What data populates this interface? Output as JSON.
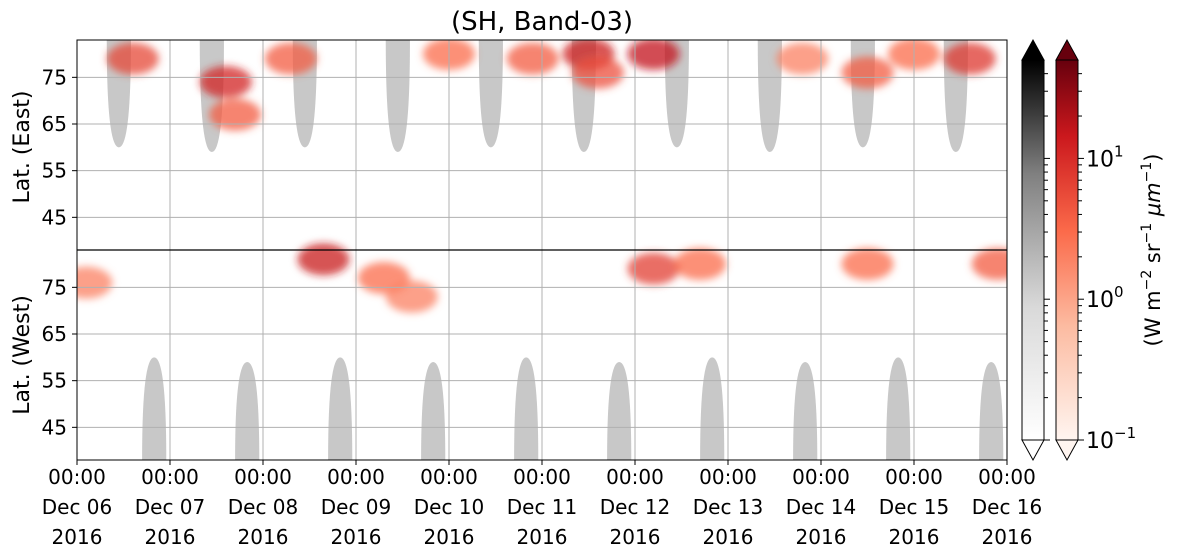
{
  "chart_data": {
    "type": "heatmap",
    "title": "(SH, Band-03)",
    "ylabel_top": "Lat. (East)",
    "ylabel_bottom": "Lat. (West)",
    "y_ticks_east": [
      "45",
      "55",
      "65",
      "75"
    ],
    "y_ticks_west": [
      "75",
      "65",
      "55",
      "45"
    ],
    "y_tick_values_east": [
      45,
      55,
      65,
      75
    ],
    "y_tick_values_west": [
      75,
      65,
      55,
      45
    ],
    "x_ticks": [
      {
        "time": "00:00",
        "date": "Dec 06",
        "year": "2016"
      },
      {
        "time": "00:00",
        "date": "Dec 07",
        "year": "2016"
      },
      {
        "time": "00:00",
        "date": "Dec 08",
        "year": "2016"
      },
      {
        "time": "00:00",
        "date": "Dec 09",
        "year": "2016"
      },
      {
        "time": "00:00",
        "date": "Dec 10",
        "year": "2016"
      },
      {
        "time": "00:00",
        "date": "Dec 11",
        "year": "2016"
      },
      {
        "time": "00:00",
        "date": "Dec 12",
        "year": "2016"
      },
      {
        "time": "00:00",
        "date": "Dec 13",
        "year": "2016"
      },
      {
        "time": "00:00",
        "date": "Dec 14",
        "year": "2016"
      },
      {
        "time": "00:00",
        "date": "Dec 15",
        "year": "2016"
      },
      {
        "time": "00:00",
        "date": "Dec 16",
        "year": "2016"
      }
    ],
    "x_range_days": [
      0,
      10
    ],
    "lat_range": [
      38,
      83
    ],
    "grid": true,
    "colorbars": [
      {
        "name": "gray",
        "scale": "log",
        "range": [
          0.1,
          50
        ],
        "extend": "both",
        "colors": [
          "#ffffff",
          "#000000"
        ]
      },
      {
        "name": "reds",
        "scale": "log",
        "range": [
          0.1,
          50
        ],
        "extend": "both",
        "colors": [
          "#fff5f0",
          "#67000d"
        ]
      }
    ],
    "colorbar_ticks": [
      {
        "base": "10",
        "exp": "1",
        "value": 10
      },
      {
        "base": "10",
        "exp": "0",
        "value": 1
      },
      {
        "base": "10",
        "exp": "−1",
        "value": 0.1
      }
    ],
    "colorbar_label": {
      "prefix": "(W m",
      "exp1": "−2",
      "mid1": " sr",
      "exp2": "−1",
      "mid2": " μm",
      "exp3": "−1",
      "suffix": ")"
    },
    "sunlit_regions_east": [
      {
        "day": 0.45,
        "edge_lat": 60
      },
      {
        "day": 1.45,
        "edge_lat": 59
      },
      {
        "day": 2.45,
        "edge_lat": 60
      },
      {
        "day": 3.45,
        "edge_lat": 59
      },
      {
        "day": 4.45,
        "edge_lat": 60
      },
      {
        "day": 5.45,
        "edge_lat": 59
      },
      {
        "day": 6.45,
        "edge_lat": 60
      },
      {
        "day": 7.45,
        "edge_lat": 59
      },
      {
        "day": 8.45,
        "edge_lat": 60
      },
      {
        "day": 9.45,
        "edge_lat": 59
      }
    ],
    "sunlit_regions_west": [
      {
        "day": 0.83,
        "edge_lat": 60
      },
      {
        "day": 1.83,
        "edge_lat": 59
      },
      {
        "day": 2.83,
        "edge_lat": 60
      },
      {
        "day": 3.83,
        "edge_lat": 59
      },
      {
        "day": 4.83,
        "edge_lat": 60
      },
      {
        "day": 5.83,
        "edge_lat": 59
      },
      {
        "day": 6.83,
        "edge_lat": 60
      },
      {
        "day": 7.83,
        "edge_lat": 59
      },
      {
        "day": 8.83,
        "edge_lat": 60
      },
      {
        "day": 9.83,
        "edge_lat": 59
      }
    ],
    "emission_patches": [
      {
        "day": 0.6,
        "lat": 79,
        "hemi": "east",
        "value": 6
      },
      {
        "day": 0.1,
        "lat": 76,
        "hemi": "west",
        "value": 2
      },
      {
        "day": 1.6,
        "lat": 74,
        "hemi": "east",
        "value": 12
      },
      {
        "day": 1.7,
        "lat": 67,
        "hemi": "east",
        "value": 4
      },
      {
        "day": 2.3,
        "lat": 79,
        "hemi": "east",
        "value": 4
      },
      {
        "day": 2.65,
        "lat": 81,
        "hemi": "west",
        "value": 15
      },
      {
        "day": 3.3,
        "lat": 77,
        "hemi": "west",
        "value": 3
      },
      {
        "day": 3.6,
        "lat": 73,
        "hemi": "west",
        "value": 2
      },
      {
        "day": 4.0,
        "lat": 80,
        "hemi": "east",
        "value": 3
      },
      {
        "day": 4.9,
        "lat": 79,
        "hemi": "east",
        "value": 4
      },
      {
        "day": 5.5,
        "lat": 80,
        "hemi": "east",
        "value": 14
      },
      {
        "day": 5.6,
        "lat": 76,
        "hemi": "east",
        "value": 5
      },
      {
        "day": 6.2,
        "lat": 80,
        "hemi": "east",
        "value": 16
      },
      {
        "day": 6.2,
        "lat": 79,
        "hemi": "west",
        "value": 7
      },
      {
        "day": 6.7,
        "lat": 80,
        "hemi": "west",
        "value": 3
      },
      {
        "day": 7.8,
        "lat": 79,
        "hemi": "east",
        "value": 2
      },
      {
        "day": 8.5,
        "lat": 76,
        "hemi": "east",
        "value": 4
      },
      {
        "day": 8.5,
        "lat": 80,
        "hemi": "west",
        "value": 3
      },
      {
        "day": 9.0,
        "lat": 80,
        "hemi": "east",
        "value": 3
      },
      {
        "day": 9.6,
        "lat": 79,
        "hemi": "east",
        "value": 8
      },
      {
        "day": 9.9,
        "lat": 80,
        "hemi": "west",
        "value": 4
      }
    ]
  }
}
